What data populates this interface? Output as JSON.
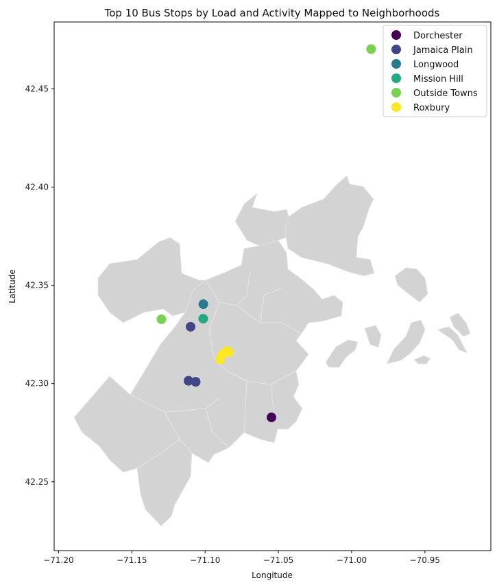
{
  "chart_data": {
    "type": "scatter",
    "title": "Top 10 Bus Stops by Load and Activity Mapped to Neighborhoods",
    "xlabel": "Longitude",
    "ylabel": "Latitude",
    "xlim": [
      -71.203,
      -70.905
    ],
    "ylim": [
      42.215,
      42.484
    ],
    "xticks": [
      -71.2,
      -71.15,
      -71.1,
      -71.05,
      -71.0,
      -70.95
    ],
    "xtick_labels": [
      "−71.20",
      "−71.15",
      "−71.10",
      "−71.05",
      "−71.00",
      "−70.95"
    ],
    "yticks": [
      42.25,
      42.3,
      42.35,
      42.4,
      42.45
    ],
    "ytick_labels": [
      "42.25",
      "42.30",
      "42.35",
      "42.40",
      "42.45"
    ],
    "grid": false,
    "legend_position": "top-right",
    "basemap_color": "#d3d3d3",
    "series": [
      {
        "name": "Dorchester",
        "color": "#440154",
        "points": [
          {
            "x": -71.0547,
            "y": 42.2828
          }
        ]
      },
      {
        "name": "Jamaica Plain",
        "color": "#414487",
        "points": [
          {
            "x": -71.1099,
            "y": 42.3289
          },
          {
            "x": -71.1113,
            "y": 42.3014
          },
          {
            "x": -71.1064,
            "y": 42.3009
          }
        ]
      },
      {
        "name": "Longwood",
        "color": "#2a788e",
        "points": [
          {
            "x": -71.1012,
            "y": 42.3404
          }
        ]
      },
      {
        "name": "Mission Hill",
        "color": "#22a884",
        "points": [
          {
            "x": -71.1013,
            "y": 42.333
          }
        ]
      },
      {
        "name": "Outside Towns",
        "color": "#7ad151",
        "points": [
          {
            "x": -71.1298,
            "y": 42.3327
          },
          {
            "x": -70.9867,
            "y": 42.4702
          }
        ]
      },
      {
        "name": "Roxbury",
        "color": "#fde725",
        "points": [
          {
            "x": -71.0897,
            "y": 42.3122
          },
          {
            "x": -71.0882,
            "y": 42.3148
          },
          {
            "x": -71.0857,
            "y": 42.3164
          },
          {
            "x": -71.0838,
            "y": 42.316
          }
        ]
      }
    ]
  }
}
